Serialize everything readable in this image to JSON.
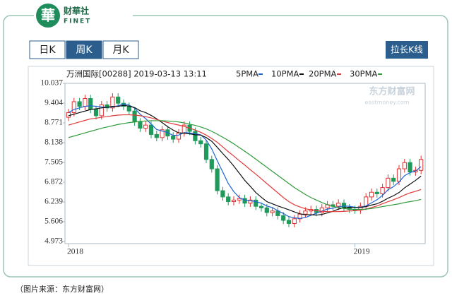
{
  "logo": {
    "mark": "華",
    "name": "财華社",
    "sub": "FINET"
  },
  "tabs": [
    "日K",
    "周K",
    "月K"
  ],
  "active_tab": 1,
  "button": "拉长K线",
  "caption": "（图片来源：东方财富网）",
  "watermark": {
    "name": "东方财富网",
    "url": "eastmoney.com"
  },
  "chart_data": {
    "type": "candlestick",
    "title": "万洲国际[00288] 2019-03-13 13:11",
    "categories": [
      "2018",
      null,
      null,
      null,
      null,
      null,
      null,
      null,
      null,
      null,
      null,
      null,
      null,
      null,
      null,
      null,
      null,
      null,
      null,
      null,
      null,
      null,
      null,
      null,
      null,
      null,
      null,
      null,
      null,
      null,
      null,
      null,
      null,
      null,
      null,
      null,
      null,
      null,
      null,
      null,
      null,
      null,
      null,
      null,
      null,
      null,
      null,
      null,
      null,
      null,
      null,
      null,
      "2019",
      null,
      null,
      null,
      null,
      null,
      null,
      null,
      null,
      null,
      null,
      null,
      null
    ],
    "open": [
      8.95,
      9.1,
      9.45,
      9.3,
      9.55,
      9.2,
      9.0,
      9.35,
      9.25,
      9.6,
      9.4,
      9.3,
      9.15,
      8.8,
      8.6,
      8.7,
      8.4,
      8.3,
      8.55,
      8.35,
      8.25,
      8.45,
      8.7,
      8.5,
      8.2,
      8.1,
      7.6,
      7.3,
      6.6,
      6.4,
      6.25,
      6.3,
      6.35,
      6.2,
      6.3,
      6.1,
      6.05,
      5.9,
      5.95,
      5.8,
      5.65,
      5.55,
      5.7,
      5.85,
      5.95,
      6.0,
      5.9,
      6.05,
      6.15,
      6.1,
      6.2,
      6.05,
      6.0,
      5.98,
      6.1,
      6.4,
      6.55,
      6.5,
      6.7,
      7.0,
      6.9,
      7.3,
      7.5,
      7.2,
      7.25
    ],
    "high": [
      9.22,
      9.57,
      9.57,
      9.67,
      9.67,
      9.32,
      9.47,
      9.47,
      9.72,
      9.72,
      9.52,
      9.42,
      9.27,
      8.92,
      8.82,
      8.82,
      8.52,
      8.67,
      8.67,
      8.47,
      8.57,
      8.82,
      8.82,
      8.62,
      8.32,
      8.22,
      7.72,
      7.42,
      6.72,
      6.52,
      6.42,
      6.47,
      6.47,
      6.42,
      6.42,
      6.22,
      6.17,
      6.07,
      6.07,
      5.92,
      5.77,
      5.82,
      5.97,
      6.07,
      6.12,
      6.12,
      6.17,
      6.27,
      6.27,
      6.32,
      6.32,
      6.17,
      6.12,
      6.22,
      6.52,
      6.67,
      6.67,
      6.82,
      7.12,
      7.12,
      7.42,
      7.62,
      7.62,
      7.37,
      7.72
    ],
    "low": [
      8.83,
      8.98,
      9.18,
      9.18,
      9.08,
      8.88,
      8.88,
      9.13,
      9.13,
      9.28,
      9.18,
      9.03,
      8.68,
      8.48,
      8.48,
      8.28,
      8.18,
      8.18,
      8.23,
      8.13,
      8.13,
      8.33,
      8.38,
      8.08,
      7.98,
      7.48,
      7.18,
      6.48,
      6.28,
      6.13,
      6.13,
      6.18,
      6.08,
      6.08,
      5.98,
      5.93,
      5.78,
      5.78,
      5.68,
      5.53,
      5.43,
      5.43,
      5.58,
      5.73,
      5.83,
      5.78,
      5.78,
      5.93,
      5.98,
      5.98,
      5.93,
      5.88,
      5.86,
      5.86,
      5.98,
      6.28,
      6.38,
      6.38,
      6.58,
      6.78,
      6.78,
      7.18,
      7.08,
      7.08,
      7.13
    ],
    "close": [
      9.1,
      9.45,
      9.3,
      9.55,
      9.2,
      9.0,
      9.35,
      9.25,
      9.6,
      9.4,
      9.3,
      9.15,
      8.8,
      8.6,
      8.7,
      8.4,
      8.3,
      8.55,
      8.35,
      8.25,
      8.45,
      8.7,
      8.5,
      8.2,
      8.1,
      7.6,
      7.3,
      6.6,
      6.4,
      6.25,
      6.3,
      6.35,
      6.2,
      6.3,
      6.1,
      6.05,
      5.9,
      5.95,
      5.8,
      5.65,
      5.55,
      5.7,
      5.85,
      5.95,
      6.0,
      5.9,
      6.05,
      6.15,
      6.1,
      6.2,
      6.05,
      6.0,
      5.98,
      6.1,
      6.4,
      6.55,
      6.5,
      6.7,
      7.0,
      6.9,
      7.3,
      7.5,
      7.2,
      7.25,
      7.6
    ],
    "up_color": "#e0312f",
    "down_color": "#1f9a5a",
    "series": [
      {
        "name": "5PMA",
        "color": "#1e63d6",
        "values": [
          9.1,
          9.2,
          9.25,
          9.3,
          9.32,
          9.3,
          9.28,
          9.27,
          9.28,
          9.32,
          9.38,
          9.34,
          9.24,
          9.05,
          8.91,
          8.73,
          8.56,
          8.51,
          8.46,
          8.37,
          8.38,
          8.46,
          8.45,
          8.42,
          8.39,
          8.22,
          7.94,
          7.56,
          7.2,
          6.83,
          6.57,
          6.38,
          6.3,
          6.28,
          6.25,
          6.2,
          6.11,
          6.06,
          5.96,
          5.87,
          5.77,
          5.73,
          5.71,
          5.74,
          5.81,
          5.88,
          5.95,
          6.01,
          6.04,
          6.08,
          6.11,
          6.1,
          6.07,
          6.07,
          6.11,
          6.21,
          6.31,
          6.45,
          6.63,
          6.73,
          6.88,
          7.08,
          7.18,
          7.23,
          7.37
        ]
      },
      {
        "name": "10PMA",
        "color": "#111111",
        "values": [
          9.0,
          9.05,
          9.1,
          9.15,
          9.2,
          9.22,
          9.25,
          9.27,
          9.3,
          9.3,
          9.33,
          9.31,
          9.26,
          9.16,
          9.1,
          9.01,
          8.9,
          8.78,
          8.65,
          8.54,
          8.45,
          8.44,
          8.42,
          8.39,
          8.38,
          8.3,
          8.18,
          7.99,
          7.79,
          7.6,
          7.39,
          7.16,
          6.93,
          6.74,
          6.54,
          6.39,
          6.25,
          6.18,
          6.11,
          6.05,
          5.99,
          5.92,
          5.86,
          5.83,
          5.83,
          5.82,
          5.84,
          5.89,
          5.94,
          6.01,
          6.06,
          6.07,
          6.06,
          6.06,
          6.09,
          6.14,
          6.18,
          6.26,
          6.36,
          6.44,
          6.54,
          6.69,
          6.81,
          6.93,
          7.07
        ]
      },
      {
        "name": "20PMA",
        "color": "#e03a3a",
        "values": [
          8.7,
          8.75,
          8.8,
          8.85,
          8.9,
          8.92,
          8.95,
          8.97,
          9.0,
          9.02,
          9.03,
          9.03,
          9.02,
          9.0,
          8.97,
          8.93,
          8.88,
          8.83,
          8.78,
          8.74,
          8.7,
          8.66,
          8.6,
          8.54,
          8.47,
          8.38,
          8.27,
          8.15,
          8.0,
          7.85,
          7.71,
          7.56,
          7.42,
          7.27,
          7.13,
          6.98,
          6.83,
          6.68,
          6.53,
          6.38,
          6.25,
          6.15,
          6.08,
          6.02,
          5.99,
          5.96,
          5.94,
          5.93,
          5.93,
          5.93,
          5.94,
          5.95,
          5.96,
          5.98,
          6.01,
          6.06,
          6.11,
          6.18,
          6.25,
          6.31,
          6.38,
          6.46,
          6.53,
          6.58,
          6.64
        ]
      },
      {
        "name": "30PMA",
        "color": "#2f9a3a",
        "values": [
          8.3,
          8.35,
          8.4,
          8.45,
          8.5,
          8.55,
          8.6,
          8.64,
          8.68,
          8.72,
          8.75,
          8.78,
          8.8,
          8.82,
          8.83,
          8.84,
          8.84,
          8.84,
          8.83,
          8.82,
          8.8,
          8.77,
          8.73,
          8.69,
          8.64,
          8.58,
          8.5,
          8.41,
          8.31,
          8.21,
          8.1,
          7.98,
          7.86,
          7.74,
          7.61,
          7.48,
          7.35,
          7.22,
          7.09,
          6.96,
          6.83,
          6.7,
          6.59,
          6.48,
          6.38,
          6.3,
          6.22,
          6.15,
          6.1,
          6.06,
          6.03,
          6.01,
          6.0,
          6.0,
          6.01,
          6.03,
          6.06,
          6.09,
          6.12,
          6.15,
          6.18,
          6.22,
          6.25,
          6.28,
          6.32
        ]
      }
    ],
    "ylim": [
      4.973,
      10.037
    ],
    "yticks": [
      10.037,
      9.404,
      8.771,
      8.138,
      7.505,
      6.872,
      6.239,
      5.606,
      4.973
    ],
    "grid": false
  }
}
